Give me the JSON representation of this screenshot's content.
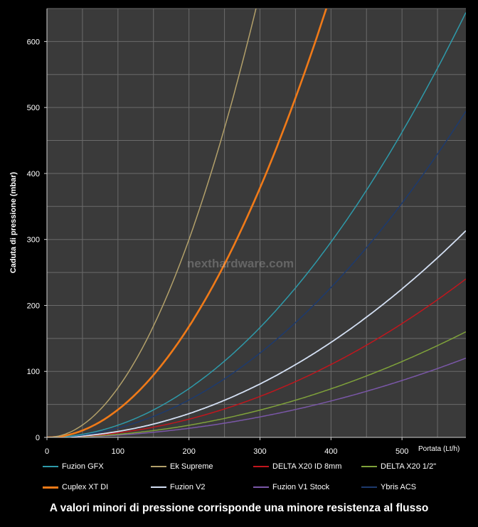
{
  "chart_data": {
    "type": "line",
    "ylabel": "Caduta di pressione (mbar)",
    "xlabel": "Portata (Lt/h)",
    "xlim": [
      0,
      590
    ],
    "ylim": [
      0,
      650
    ],
    "xticks": [
      "0",
      "100",
      "200",
      "300",
      "400",
      "500"
    ],
    "yticks": [
      "0",
      "100",
      "200",
      "300",
      "400",
      "500",
      "600"
    ],
    "grid": true,
    "watermark": "nexthardware.com",
    "series": [
      {
        "name": "Fuzion GFX",
        "color": "#2e9aaa",
        "coef": 0.00185,
        "exp": 2,
        "width": 1.5
      },
      {
        "name": "Ek Supreme",
        "color": "#b2a06a",
        "coef": 0.0075,
        "exp": 2,
        "width": 1.5
      },
      {
        "name": "DELTA X20 ID 8mm",
        "color": "#c1161d",
        "coef": 0.00069,
        "exp": 2,
        "width": 1.5
      },
      {
        "name": "DELTA X20 1/2\"",
        "color": "#7fa23a",
        "coef": 0.00046,
        "exp": 2,
        "width": 1.5
      },
      {
        "name": "Cuplex XT DI",
        "color": "#f07a18",
        "coef": 0.0042,
        "exp": 2,
        "width": 2.6
      },
      {
        "name": "Fuzion V2",
        "color": "#d4e0f4",
        "coef": 0.0009,
        "exp": 2,
        "width": 1.8
      },
      {
        "name": "Fuzion V1 Stock",
        "color": "#7a57a8",
        "coef": 0.000345,
        "exp": 2,
        "width": 1.5
      },
      {
        "name": "Ybris ACS",
        "color": "#1d3a6e",
        "coef": 0.00142,
        "exp": 2,
        "width": 1.5
      }
    ]
  },
  "caption": "A valori minori di pressione corrisponde una minore resistenza al flusso"
}
